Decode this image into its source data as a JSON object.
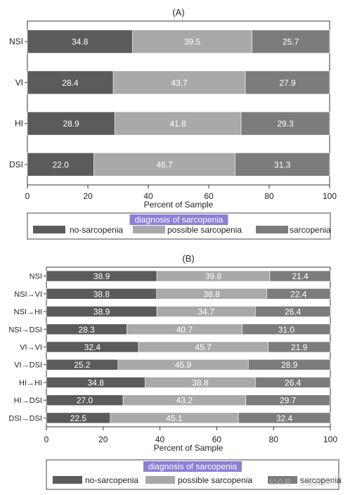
{
  "colors": {
    "no_sarcopenia": "#5b5b5b",
    "possible_sarcopenia": "#a9a9a9",
    "sarcopenia": "#7c7c7c",
    "legend_title_bg": "#8c7fd6",
    "legend_title_text": "#ffffff"
  },
  "watermark": "公众号 · 光速荐研所",
  "chart_data": [
    {
      "type": "bar",
      "orientation": "horizontal",
      "stacked": true,
      "title": "(A)",
      "xlabel": "Percent of Sample",
      "ylabel": "",
      "xlim": [
        0,
        100
      ],
      "xticks": [
        0,
        20,
        40,
        60,
        80,
        100
      ],
      "grid": false,
      "categories": [
        "NSI",
        "VI",
        "HI",
        "DSI"
      ],
      "series": [
        {
          "name": "no-sarcopenia",
          "values": [
            34.8,
            28.4,
            28.9,
            22.0
          ],
          "labels": [
            "34.8",
            "28.4",
            "28.9",
            "22.0"
          ]
        },
        {
          "name": "possible sarcopenia",
          "values": [
            39.5,
            43.7,
            41.8,
            46.7
          ],
          "labels": [
            "39.5",
            "43.7",
            "41.8",
            "46.7"
          ]
        },
        {
          "name": "sarcopenia",
          "values": [
            25.7,
            27.9,
            29.3,
            31.3
          ],
          "labels": [
            "25.7",
            "27.9",
            "29.3",
            "31.3"
          ]
        }
      ],
      "legend": {
        "title": "diagnosis of sarcopenia",
        "position": "bottom"
      }
    },
    {
      "type": "bar",
      "orientation": "horizontal",
      "stacked": true,
      "title": "(B)",
      "xlabel": "Percent of Sample",
      "ylabel": "",
      "xlim": [
        0,
        100
      ],
      "xticks": [
        0,
        20,
        40,
        60,
        80,
        100
      ],
      "grid": false,
      "categories": [
        "NSI",
        "NSI→VI",
        "NSI→HI",
        "NSI→DSI",
        "VI→VI",
        "VI→DSI",
        "HI→HI",
        "HI→DSI",
        "DSI→DSI"
      ],
      "series": [
        {
          "name": "no-sarcopenia",
          "values": [
            38.9,
            38.8,
            38.9,
            28.3,
            32.4,
            25.2,
            34.8,
            27.0,
            22.5
          ],
          "labels": [
            "38.9",
            "38.8",
            "38.9",
            "28.3",
            "32.4",
            "25.2",
            "34.8",
            "27.0",
            "22.5"
          ]
        },
        {
          "name": "possible sarcopenia",
          "values": [
            39.8,
            38.8,
            34.7,
            40.7,
            45.7,
            45.9,
            38.8,
            43.2,
            45.1
          ],
          "labels": [
            "39.8",
            "38.8",
            "34.7",
            "40.7",
            "45.7",
            "45.9",
            "38.8",
            "43.2",
            "45.1"
          ]
        },
        {
          "name": "sarcopenia",
          "values": [
            21.4,
            22.4,
            26.4,
            31.0,
            21.9,
            28.9,
            26.4,
            29.7,
            32.4
          ],
          "labels": [
            "21.4",
            "22.4",
            "26.4",
            "31.0",
            "21.9",
            "28.9",
            "26.4",
            "29.7",
            "32.4"
          ]
        }
      ],
      "legend": {
        "title": "diagnosis of sarcopenia",
        "position": "bottom"
      }
    }
  ]
}
